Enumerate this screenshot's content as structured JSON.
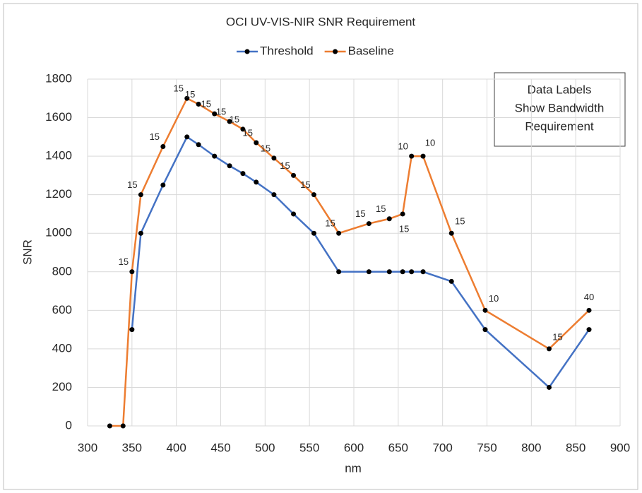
{
  "chart_data": {
    "type": "line",
    "title": "OCI UV-VIS-NIR SNR Requirement",
    "x_label": "nm",
    "y_label": "SNR",
    "annotation": [
      "Data Labels",
      "Show Bandwidth",
      "Requirement"
    ],
    "xlim": [
      300,
      900
    ],
    "xticks": [
      300,
      350,
      400,
      450,
      500,
      550,
      600,
      650,
      700,
      750,
      800,
      850,
      900
    ],
    "ylim": [
      0,
      1800
    ],
    "yticks": [
      0,
      200,
      400,
      600,
      800,
      1000,
      1200,
      1400,
      1600,
      1800
    ],
    "grid": true,
    "legend": "top",
    "series": [
      {
        "name": "Threshold",
        "color": "#4472c4",
        "x": [
          350,
          360,
          385,
          412,
          425,
          443,
          460,
          475,
          490,
          510,
          532,
          555,
          583,
          617,
          640,
          655,
          665,
          678,
          710,
          748,
          820,
          865
        ],
        "values": [
          500,
          1000,
          1250,
          1500,
          1460,
          1400,
          1350,
          1310,
          1265,
          1200,
          1100,
          1000,
          800,
          800,
          800,
          800,
          800,
          800,
          750,
          500,
          200,
          500
        ]
      },
      {
        "name": "Baseline",
        "color": "#ed7d31",
        "x": [
          325,
          340,
          350,
          360,
          385,
          412,
          425,
          443,
          460,
          475,
          490,
          510,
          532,
          555,
          583,
          617,
          640,
          655,
          665,
          678,
          710,
          748,
          820,
          865
        ],
        "values": [
          0,
          0,
          800,
          1200,
          1450,
          1700,
          1670,
          1620,
          1580,
          1540,
          1470,
          1390,
          1300,
          1200,
          1000,
          1050,
          1075,
          1100,
          1400,
          1400,
          1000,
          600,
          400,
          600
        ],
        "bandwidth": [
          null,
          null,
          15,
          15,
          15,
          15,
          15,
          15,
          15,
          15,
          15,
          15,
          15,
          15,
          15,
          15,
          15,
          15,
          10,
          10,
          15,
          10,
          15,
          40
        ]
      }
    ]
  }
}
